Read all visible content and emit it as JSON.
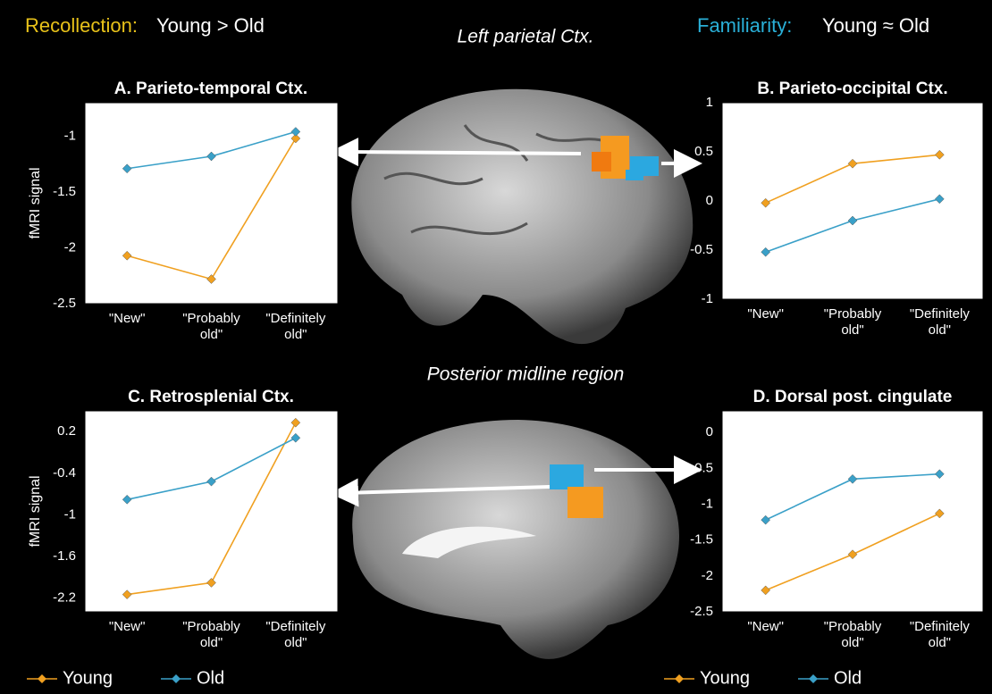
{
  "header": {
    "recollection": "Recollection:",
    "recollection_desc": "Young > Old",
    "familiarity": "Familiarity:",
    "familiarity_desc": "Young ≈ Old",
    "top_region": "Left parietal Ctx.",
    "bottom_region": "Posterior midline region"
  },
  "chart_data": [
    {
      "type": "line",
      "title": "A. Parieto-temporal Ctx.",
      "y_label": "fMRI signal",
      "categories": [
        "\"New\"",
        "\"Probably old\"",
        "\"Definitely old\""
      ],
      "series": [
        {
          "color": "#f0a020",
          "values": [
            -2.07,
            -2.28,
            -1.02
          ]
        },
        {
          "color": "#3aa0c8",
          "values": [
            -1.29,
            -1.18,
            -0.96
          ]
        }
      ],
      "ylim": [
        -2.5,
        -0.7
      ],
      "yticks": [
        -2.5,
        -2,
        -1.5,
        -1
      ]
    },
    {
      "type": "line",
      "title": "B. Parieto-occipital Ctx.",
      "categories": [
        "\"New\"",
        "\"Probably old\"",
        "\"Definitely old\""
      ],
      "series": [
        {
          "color": "#f0a020",
          "values": [
            -0.02,
            0.38,
            0.47
          ]
        },
        {
          "color": "#3aa0c8",
          "values": [
            -0.52,
            -0.2,
            0.02
          ]
        }
      ],
      "ylim": [
        -1,
        1
      ],
      "yticks": [
        -1,
        -0.5,
        0,
        0.5,
        1
      ]
    },
    {
      "type": "line",
      "title": "C. Retrosplenial Ctx.",
      "y_label": "fMRI signal",
      "categories": [
        "\"New\"",
        "\"Probably old\"",
        "\"Definitely old\""
      ],
      "series": [
        {
          "name": "Young",
          "color": "#f0a020",
          "values": [
            -2.15,
            -1.98,
            0.33
          ]
        },
        {
          "name": "Old",
          "color": "#3aa0c8",
          "values": [
            -0.78,
            -0.52,
            0.11
          ]
        }
      ],
      "ylim": [
        -2.4,
        0.5
      ],
      "yticks": [
        -2.2,
        -1.6,
        -1,
        -0.4,
        0.2
      ],
      "legend": "bottom"
    },
    {
      "type": "line",
      "title": "D. Dorsal post. cingulate",
      "categories": [
        "\"New\"",
        "\"Probably old\"",
        "\"Definitely old\""
      ],
      "series": [
        {
          "name": "Young",
          "color": "#f0a020",
          "values": [
            -2.2,
            -1.7,
            -1.13
          ]
        },
        {
          "name": "Old",
          "color": "#3aa0c8",
          "values": [
            -1.22,
            -0.65,
            -0.58
          ]
        }
      ],
      "ylim": [
        -2.5,
        0.3
      ],
      "yticks": [
        -2.5,
        -2,
        -1.5,
        -1,
        -0.5,
        0
      ],
      "legend": "bottom"
    }
  ]
}
